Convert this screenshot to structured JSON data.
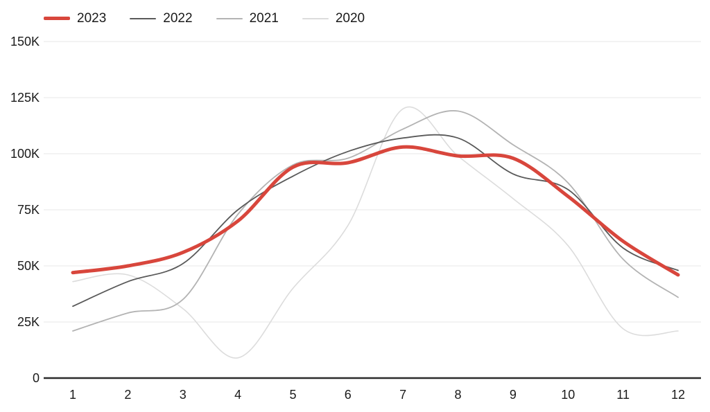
{
  "chart_data": {
    "type": "line",
    "title": "",
    "xlabel": "",
    "ylabel": "",
    "x": [
      1,
      2,
      3,
      4,
      5,
      6,
      7,
      8,
      9,
      10,
      11,
      12
    ],
    "x_tick_labels": [
      "1",
      "2",
      "3",
      "4",
      "5",
      "6",
      "7",
      "8",
      "9",
      "10",
      "11",
      "12"
    ],
    "y_unit": "thousands",
    "ylim_thousands": [
      0,
      150
    ],
    "y_ticks": [
      {
        "value_k": 0,
        "label": "0"
      },
      {
        "value_k": 25,
        "label": "25K"
      },
      {
        "value_k": 50,
        "label": "50K"
      },
      {
        "value_k": 75,
        "label": "75K"
      },
      {
        "value_k": 100,
        "label": "100K"
      },
      {
        "value_k": 125,
        "label": "125K"
      },
      {
        "value_k": 150,
        "label": "150K"
      }
    ],
    "grid": "horizontal",
    "legend_position": "top-left",
    "legend_order": [
      "2023",
      "2022",
      "2021",
      "2020"
    ],
    "series": [
      {
        "name": "2023",
        "color": "#d8463c",
        "line_width": 5,
        "values_k": [
          47,
          50,
          56,
          70,
          94,
          96,
          103,
          99,
          98,
          81,
          61,
          46
        ]
      },
      {
        "name": "2022",
        "color": "#595959",
        "line_width": 1.8,
        "values_k": [
          32,
          43,
          51,
          75,
          90,
          101,
          107,
          107,
          91,
          84,
          58,
          48
        ]
      },
      {
        "name": "2021",
        "color": "#b3b3b3",
        "line_width": 1.8,
        "values_k": [
          21,
          29,
          35,
          73,
          95,
          98,
          111,
          119,
          104,
          87,
          53,
          36
        ]
      },
      {
        "name": "2020",
        "color": "#dcdcdc",
        "line_width": 1.6,
        "values_k": [
          43,
          46,
          31,
          9,
          40,
          68,
          120,
          99,
          80,
          59,
          22,
          21
        ]
      }
    ],
    "colors": {
      "grid_line": "#e7e7e7",
      "axis_line": "#2b2b2b",
      "tick_text": "#1a1a1a"
    }
  }
}
